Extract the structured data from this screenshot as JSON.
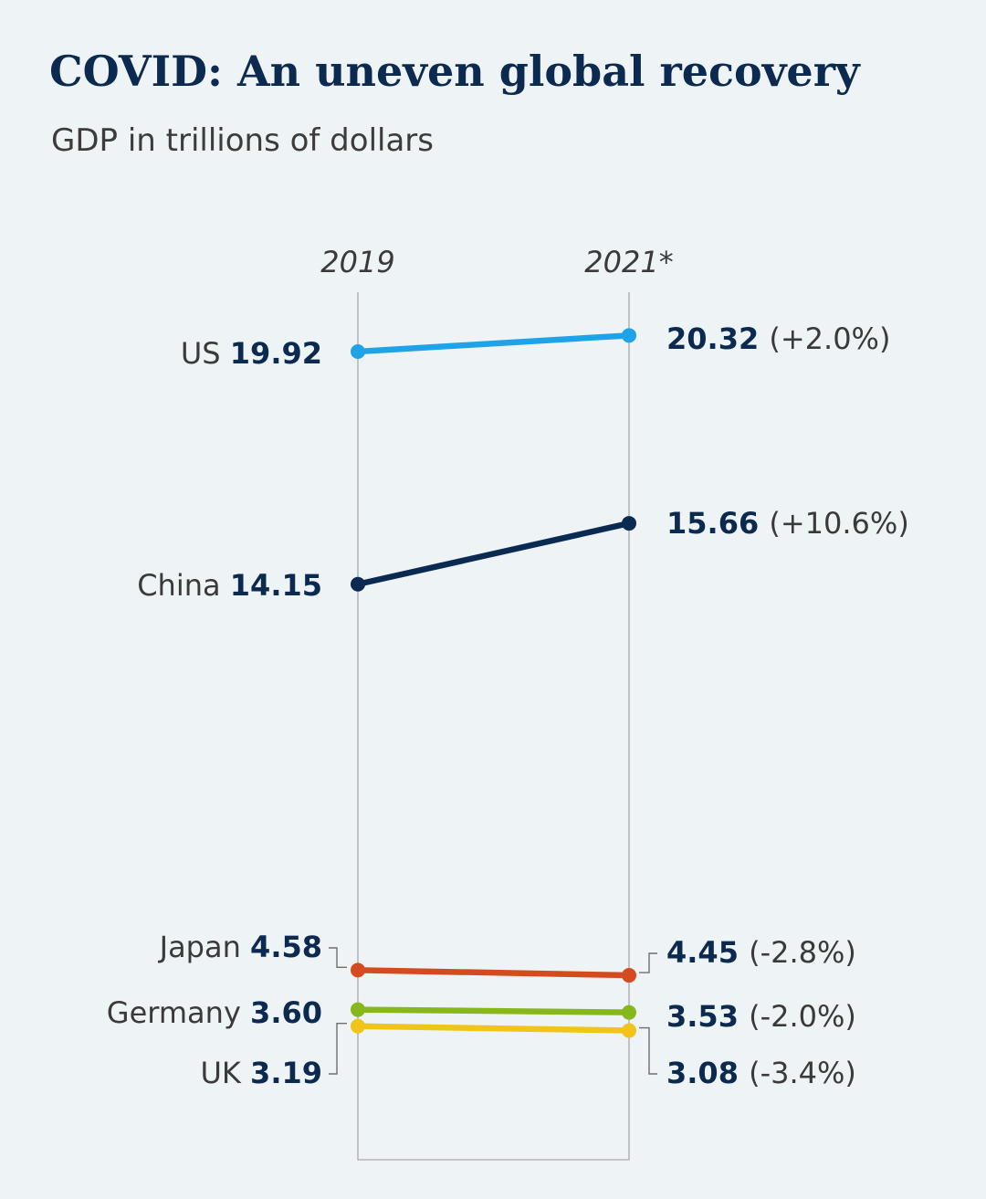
{
  "header": {
    "title": "COVID: An uneven global recovery",
    "subtitle": "GDP in trillions of dollars"
  },
  "chart_data": {
    "type": "line",
    "title": "COVID: An uneven global recovery",
    "subtitle": "GDP in trillions of dollars",
    "xlabel": "",
    "ylabel": "GDP in trillions of dollars",
    "categories": [
      "2019",
      "2021*"
    ],
    "ylim": [
      3.0,
      20.5
    ],
    "grid": false,
    "series": [
      {
        "name": "US",
        "values": [
          19.92,
          20.32
        ],
        "label_2019": "19.92",
        "label_2021": "20.32",
        "change": "(+2.0%)",
        "color": "#1fa3e8"
      },
      {
        "name": "China",
        "values": [
          14.15,
          15.66
        ],
        "label_2019": "14.15",
        "label_2021": "15.66",
        "change": "(+10.6%)",
        "color": "#0b2a52"
      },
      {
        "name": "Japan",
        "values": [
          4.58,
          4.45
        ],
        "label_2019": "4.58",
        "label_2021": "4.45",
        "change": "(-2.8%)",
        "color": "#d44b1f"
      },
      {
        "name": "Germany",
        "values": [
          3.6,
          3.53
        ],
        "label_2019": "3.60",
        "label_2021": "3.53",
        "change": "(-2.0%)",
        "color": "#86b81b"
      },
      {
        "name": "UK",
        "values": [
          3.19,
          3.08
        ],
        "label_2019": "3.19",
        "label_2021": "3.08",
        "change": "(-3.4%)",
        "color": "#f0c419"
      }
    ]
  }
}
